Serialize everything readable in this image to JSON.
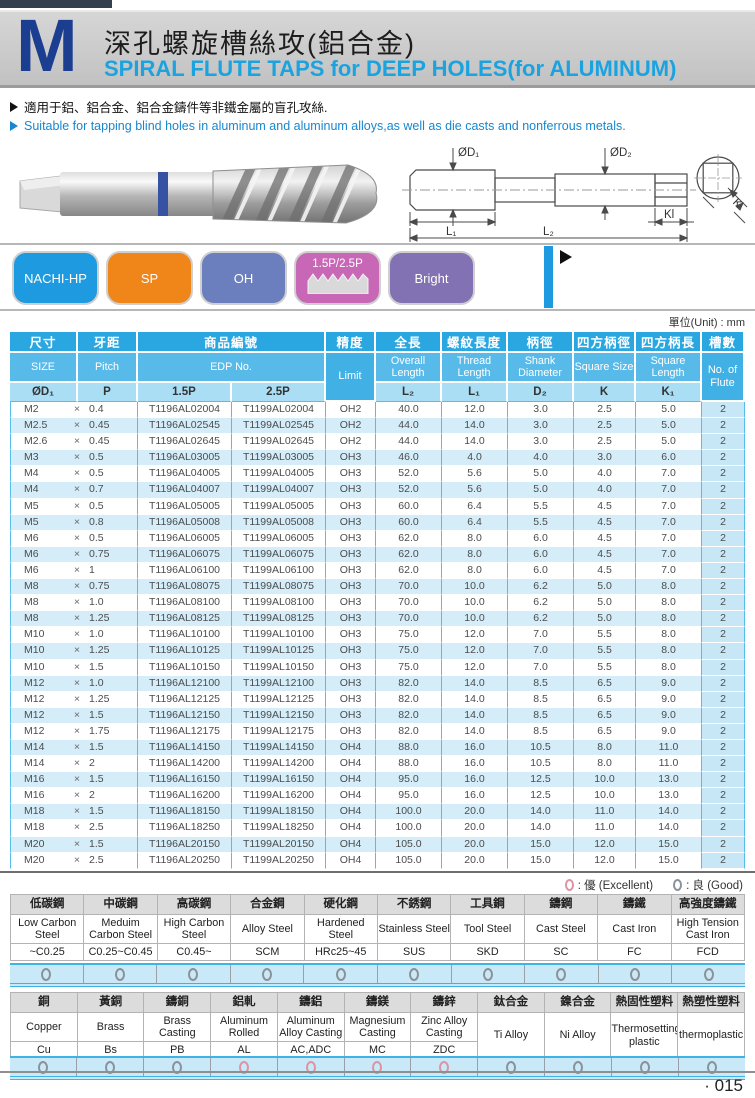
{
  "page": {
    "unit_note": "單位(Unit) : mm",
    "page_number": "· 015"
  },
  "header": {
    "letter": "M",
    "title_zh": "深孔螺旋槽絲攻(鋁合金)",
    "title_en": "SPIRAL FLUTE TAPS for DEEP HOLES(for ALUMINUM)",
    "accent_color": "#1ba3e0"
  },
  "intro": {
    "line_zh": "適用于鋁、鋁合金、鋁合金鑄件等非鐵金屬的盲孔攻絲.",
    "line_en": "Suitable for tapping blind holes in aluminum and aluminum alloys,as well as die casts and nonferrous metals."
  },
  "diagram_labels": {
    "d1": "ØD₁",
    "d2": "ØD₂",
    "l1": "L₁",
    "l2": "L₂",
    "kl": "Kl",
    "k": "K"
  },
  "badges": [
    {
      "label": "NACHI-HP",
      "color": "#1e9be0"
    },
    {
      "label": "SP",
      "color": "#f08519"
    },
    {
      "label": "OH",
      "color": "#6b7fbf"
    },
    {
      "label": "1.5P/2.5P",
      "color": "#c767b5",
      "thread_profile": true
    },
    {
      "label": "Bright",
      "color": "#8372b3"
    }
  ],
  "main_table": {
    "multiply_sign": "×",
    "headers": {
      "size": {
        "zh": "尺寸",
        "en": "SIZE",
        "sym": "ØD₁"
      },
      "pitch": {
        "zh": "牙距",
        "en": "Pitch",
        "sym": "P"
      },
      "edp": {
        "zh": "商品編號",
        "en": "EDP No.",
        "sub1": "1.5P",
        "sub2": "2.5P"
      },
      "limit": {
        "zh": "精度",
        "en": "Limit"
      },
      "overall": {
        "zh": "全長",
        "en": "Overall Length",
        "sym": "L₂"
      },
      "thread": {
        "zh": "螺紋長度",
        "en": "Thread Length",
        "sym": "L₁"
      },
      "shank": {
        "zh": "柄徑",
        "en": "Shank Diameter",
        "sym": "D₂"
      },
      "square_size": {
        "zh": "四方柄徑",
        "en": "Square Size",
        "sym": "K"
      },
      "square_len": {
        "zh": "四方柄長",
        "en": "Square Length",
        "sym": "K₁"
      },
      "flutes": {
        "zh": "槽數",
        "en": "No. of Flute"
      }
    },
    "rows": [
      [
        "M2",
        "0.4",
        "T1196AL02004",
        "T1199AL02004",
        "OH2",
        "40.0",
        "12.0",
        "3.0",
        "2.5",
        "5.0",
        "2"
      ],
      [
        "M2.5",
        "0.45",
        "T1196AL02545",
        "T1199AL02545",
        "OH2",
        "44.0",
        "14.0",
        "3.0",
        "2.5",
        "5.0",
        "2"
      ],
      [
        "M2.6",
        "0.45",
        "T1196AL02645",
        "T1199AL02645",
        "OH2",
        "44.0",
        "14.0",
        "3.0",
        "2.5",
        "5.0",
        "2"
      ],
      [
        "M3",
        "0.5",
        "T1196AL03005",
        "T1199AL03005",
        "OH3",
        "46.0",
        "4.0",
        "4.0",
        "3.0",
        "6.0",
        "2"
      ],
      [
        "M4",
        "0.5",
        "T1196AL04005",
        "T1199AL04005",
        "OH3",
        "52.0",
        "5.6",
        "5.0",
        "4.0",
        "7.0",
        "2"
      ],
      [
        "M4",
        "0.7",
        "T1196AL04007",
        "T1199AL04007",
        "OH3",
        "52.0",
        "5.6",
        "5.0",
        "4.0",
        "7.0",
        "2"
      ],
      [
        "M5",
        "0.5",
        "T1196AL05005",
        "T1199AL05005",
        "OH3",
        "60.0",
        "6.4",
        "5.5",
        "4.5",
        "7.0",
        "2"
      ],
      [
        "M5",
        "0.8",
        "T1196AL05008",
        "T1199AL05008",
        "OH3",
        "60.0",
        "6.4",
        "5.5",
        "4.5",
        "7.0",
        "2"
      ],
      [
        "M6",
        "0.5",
        "T1196AL06005",
        "T1199AL06005",
        "OH3",
        "62.0",
        "8.0",
        "6.0",
        "4.5",
        "7.0",
        "2"
      ],
      [
        "M6",
        "0.75",
        "T1196AL06075",
        "T1199AL06075",
        "OH3",
        "62.0",
        "8.0",
        "6.0",
        "4.5",
        "7.0",
        "2"
      ],
      [
        "M6",
        "1",
        "T1196AL06100",
        "T1199AL06100",
        "OH3",
        "62.0",
        "8.0",
        "6.0",
        "4.5",
        "7.0",
        "2"
      ],
      [
        "M8",
        "0.75",
        "T1196AL08075",
        "T1199AL08075",
        "OH3",
        "70.0",
        "10.0",
        "6.2",
        "5.0",
        "8.0",
        "2"
      ],
      [
        "M8",
        "1.0",
        "T1196AL08100",
        "T1199AL08100",
        "OH3",
        "70.0",
        "10.0",
        "6.2",
        "5.0",
        "8.0",
        "2"
      ],
      [
        "M8",
        "1.25",
        "T1196AL08125",
        "T1199AL08125",
        "OH3",
        "70.0",
        "10.0",
        "6.2",
        "5.0",
        "8.0",
        "2"
      ],
      [
        "M10",
        "1.0",
        "T1196AL10100",
        "T1199AL10100",
        "OH3",
        "75.0",
        "12.0",
        "7.0",
        "5.5",
        "8.0",
        "2"
      ],
      [
        "M10",
        "1.25",
        "T1196AL10125",
        "T1199AL10125",
        "OH3",
        "75.0",
        "12.0",
        "7.0",
        "5.5",
        "8.0",
        "2"
      ],
      [
        "M10",
        "1.5",
        "T1196AL10150",
        "T1199AL10150",
        "OH3",
        "75.0",
        "12.0",
        "7.0",
        "5.5",
        "8.0",
        "2"
      ],
      [
        "M12",
        "1.0",
        "T1196AL12100",
        "T1199AL12100",
        "OH3",
        "82.0",
        "14.0",
        "8.5",
        "6.5",
        "9.0",
        "2"
      ],
      [
        "M12",
        "1.25",
        "T1196AL12125",
        "T1199AL12125",
        "OH3",
        "82.0",
        "14.0",
        "8.5",
        "6.5",
        "9.0",
        "2"
      ],
      [
        "M12",
        "1.5",
        "T1196AL12150",
        "T1199AL12150",
        "OH3",
        "82.0",
        "14.0",
        "8.5",
        "6.5",
        "9.0",
        "2"
      ],
      [
        "M12",
        "1.75",
        "T1196AL12175",
        "T1199AL12175",
        "OH3",
        "82.0",
        "14.0",
        "8.5",
        "6.5",
        "9.0",
        "2"
      ],
      [
        "M14",
        "1.5",
        "T1196AL14150",
        "T1199AL14150",
        "OH4",
        "88.0",
        "16.0",
        "10.5",
        "8.0",
        "11.0",
        "2"
      ],
      [
        "M14",
        "2",
        "T1196AL14200",
        "T1199AL14200",
        "OH4",
        "88.0",
        "16.0",
        "10.5",
        "8.0",
        "11.0",
        "2"
      ],
      [
        "M16",
        "1.5",
        "T1196AL16150",
        "T1199AL16150",
        "OH4",
        "95.0",
        "16.0",
        "12.5",
        "10.0",
        "13.0",
        "2"
      ],
      [
        "M16",
        "2",
        "T1196AL16200",
        "T1199AL16200",
        "OH4",
        "95.0",
        "16.0",
        "12.5",
        "10.0",
        "13.0",
        "2"
      ],
      [
        "M18",
        "1.5",
        "T1196AL18150",
        "T1199AL18150",
        "OH4",
        "100.0",
        "20.0",
        "14.0",
        "11.0",
        "14.0",
        "2"
      ],
      [
        "M18",
        "2.5",
        "T1196AL18250",
        "T1199AL18250",
        "OH4",
        "100.0",
        "20.0",
        "14.0",
        "11.0",
        "14.0",
        "2"
      ],
      [
        "M20",
        "1.5",
        "T1196AL20150",
        "T1199AL20150",
        "OH4",
        "105.0",
        "20.0",
        "15.0",
        "12.0",
        "15.0",
        "2"
      ],
      [
        "M20",
        "2.5",
        "T1196AL20250",
        "T1199AL20250",
        "OH4",
        "105.0",
        "20.0",
        "15.0",
        "12.0",
        "15.0",
        "2"
      ]
    ]
  },
  "legend": [
    {
      "type": "excellent",
      "colon": ":",
      "label": "優 (Excellent)"
    },
    {
      "type": "good",
      "colon": ":",
      "label": "良 (Good)"
    }
  ],
  "materials_table_1": {
    "columns": [
      {
        "zh": "低碳鋼",
        "en": "Low Carbon Steel",
        "code": "~C0.25",
        "rating": "good"
      },
      {
        "zh": "中碳鋼",
        "en": "Meduim Carbon Steel",
        "code": "C0.25~C0.45",
        "rating": "good"
      },
      {
        "zh": "高碳鋼",
        "en": "High Carbon Steel",
        "code": "C0.45~",
        "rating": "good"
      },
      {
        "zh": "合金鋼",
        "en": "Alloy Steel",
        "code": "SCM",
        "rating": "good"
      },
      {
        "zh": "硬化鋼",
        "en": "Hardened Steel",
        "code": "HRc25~45",
        "rating": "good"
      },
      {
        "zh": "不銹鋼",
        "en": "Stainless Steel",
        "code": "SUS",
        "rating": "good"
      },
      {
        "zh": "工具鋼",
        "en": "Tool Steel",
        "code": "SKD",
        "rating": "good"
      },
      {
        "zh": "鑄鋼",
        "en": "Cast Steel",
        "code": "SC",
        "rating": "good"
      },
      {
        "zh": "鑄鐵",
        "en": "Cast Iron",
        "code": "FC",
        "rating": "good"
      },
      {
        "zh": "高強度鑄鐵",
        "en": "High Tension Cast Iron",
        "code": "FCD",
        "rating": "good"
      }
    ]
  },
  "materials_table_2": {
    "columns": [
      {
        "zh": "銅",
        "en": "Copper",
        "code": "Cu",
        "rating": "good"
      },
      {
        "zh": "黃銅",
        "en": "Brass",
        "code": "Bs",
        "rating": "good"
      },
      {
        "zh": "鑄銅",
        "en": "Brass Casting",
        "code": "PB",
        "rating": "good"
      },
      {
        "zh": "鋁軋",
        "en": "Aluminum Rolled",
        "code": "AL",
        "rating": "excellent"
      },
      {
        "zh": "鑄鋁",
        "en": "Aluminum Alloy Casting",
        "code": "AC,ADC",
        "rating": "excellent"
      },
      {
        "zh": "鑄鎂",
        "en": "Magnesium Casting",
        "code": "MC",
        "rating": "excellent"
      },
      {
        "zh": "鑄鋅",
        "en": "Zinc Alloy Casting",
        "code": "ZDC",
        "rating": "excellent"
      },
      {
        "zh": "鈦合金",
        "en": "Ti Alloy",
        "code": null,
        "rating": "good"
      },
      {
        "zh": "鎳合金",
        "en": "Ni Alloy",
        "code": null,
        "rating": "good"
      },
      {
        "zh": "熱固性塑料",
        "en": "Thermosetting plastic",
        "code": null,
        "rating": "good"
      },
      {
        "zh": "熱塑性塑料",
        "en": "thermoplastic",
        "code": null,
        "rating": "good"
      }
    ]
  }
}
